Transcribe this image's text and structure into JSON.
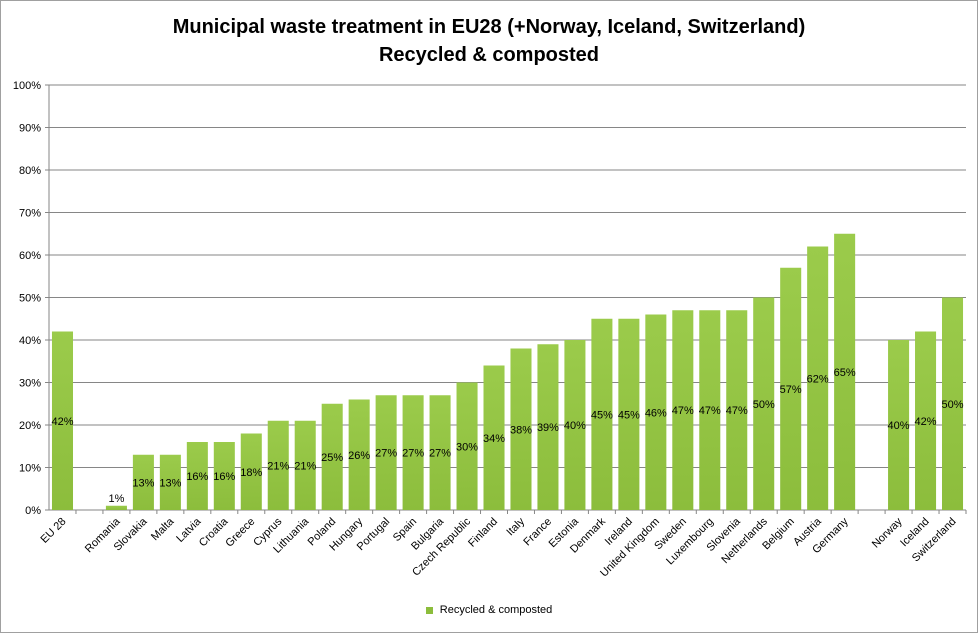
{
  "chart_data": {
    "type": "bar",
    "title": "Municipal waste treatment in EU28 (+Norway, Iceland, Switzerland)",
    "subtitle": "Recycled & composted",
    "yticks": [
      "0%",
      "10%",
      "20%",
      "30%",
      "40%",
      "50%",
      "60%",
      "70%",
      "80%",
      "90%",
      "100%"
    ],
    "ylim": [
      0,
      100
    ],
    "grid": true,
    "legend_position": "bottom",
    "series": [
      {
        "name": "Recycled & composted",
        "color": "#8cbd3c",
        "data": [
          {
            "category": "EU 28",
            "value": 42,
            "label": "42%"
          },
          {
            "category": "",
            "value": null,
            "label": ""
          },
          {
            "category": "Romania",
            "value": 1,
            "label": "1%"
          },
          {
            "category": "Slovakia",
            "value": 13,
            "label": "13%"
          },
          {
            "category": "Malta",
            "value": 13,
            "label": "13%"
          },
          {
            "category": "Latvia",
            "value": 16,
            "label": "16%"
          },
          {
            "category": "Croatia",
            "value": 16,
            "label": "16%"
          },
          {
            "category": "Greece",
            "value": 18,
            "label": "18%"
          },
          {
            "category": "Cyprus",
            "value": 21,
            "label": "21%"
          },
          {
            "category": "Lithuania",
            "value": 21,
            "label": "21%"
          },
          {
            "category": "Poland",
            "value": 25,
            "label": "25%"
          },
          {
            "category": "Hungary",
            "value": 26,
            "label": "26%"
          },
          {
            "category": "Portugal",
            "value": 27,
            "label": "27%"
          },
          {
            "category": "Spain",
            "value": 27,
            "label": "27%"
          },
          {
            "category": "Bulgaria",
            "value": 27,
            "label": "27%"
          },
          {
            "category": "Czech Republic",
            "value": 30,
            "label": "30%"
          },
          {
            "category": "Finland",
            "value": 34,
            "label": "34%"
          },
          {
            "category": "Italy",
            "value": 38,
            "label": "38%"
          },
          {
            "category": "France",
            "value": 39,
            "label": "39%"
          },
          {
            "category": "Estonia",
            "value": 40,
            "label": "40%"
          },
          {
            "category": "Denmark",
            "value": 45,
            "label": "45%"
          },
          {
            "category": "Ireland",
            "value": 45,
            "label": "45%"
          },
          {
            "category": "United Kingdom",
            "value": 46,
            "label": "46%"
          },
          {
            "category": "Sweden",
            "value": 47,
            "label": "47%"
          },
          {
            "category": "Luxembourg",
            "value": 47,
            "label": "47%"
          },
          {
            "category": "Slovenia",
            "value": 47,
            "label": "47%"
          },
          {
            "category": "Netherlands",
            "value": 50,
            "label": "50%"
          },
          {
            "category": "Belgium",
            "value": 57,
            "label": "57%"
          },
          {
            "category": "Austria",
            "value": 62,
            "label": "62%"
          },
          {
            "category": "Germany",
            "value": 65,
            "label": "65%"
          },
          {
            "category": "",
            "value": null,
            "label": ""
          },
          {
            "category": "Norway",
            "value": 40,
            "label": "40%"
          },
          {
            "category": "Iceland",
            "value": 42,
            "label": "42%"
          },
          {
            "category": "Switzerland",
            "value": 50,
            "label": "50%"
          }
        ]
      }
    ]
  }
}
